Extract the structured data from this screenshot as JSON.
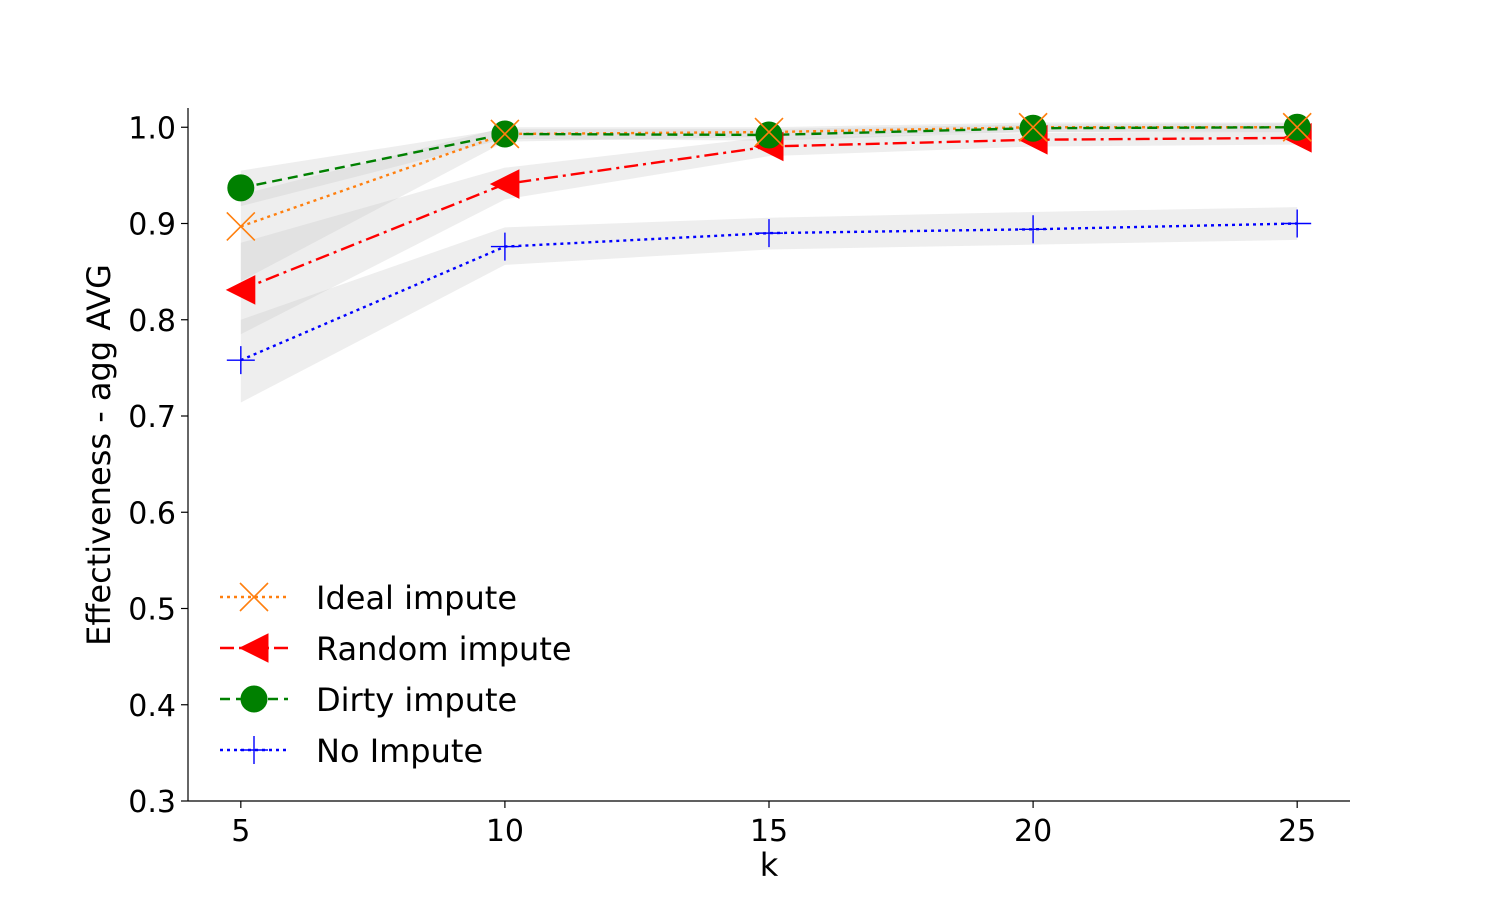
{
  "chart_data": {
    "type": "line",
    "title": "",
    "xlabel": "k",
    "ylabel": "Effectiveness - agg AVG",
    "x": [
      5,
      10,
      15,
      20,
      25
    ],
    "xlim": [
      4,
      26
    ],
    "ylim": [
      0.3,
      1.02
    ],
    "x_ticks": [
      "5",
      "10",
      "15",
      "20",
      "25"
    ],
    "y_ticks": [
      "0.3",
      "0.4",
      "0.5",
      "0.6",
      "0.7",
      "0.8",
      "0.9",
      "1.0"
    ],
    "grid": false,
    "legend_position": "lower-left",
    "series": [
      {
        "name": "Ideal impute",
        "values": [
          0.897,
          0.993,
          0.995,
          1.0,
          1.0
        ],
        "band_low": [
          0.84,
          0.985,
          0.99,
          0.995,
          0.995
        ],
        "band_high": [
          0.93,
          1.0,
          1.0,
          1.005,
          1.005
        ],
        "color": "#ff7f0e",
        "dash": "dotted",
        "marker": "x"
      },
      {
        "name": "Random impute",
        "values": [
          0.831,
          0.941,
          0.98,
          0.987,
          0.989
        ],
        "band_low": [
          0.785,
          0.925,
          0.97,
          0.98,
          0.982
        ],
        "band_high": [
          0.88,
          0.958,
          0.99,
          0.994,
          0.996
        ],
        "color": "#ff0000",
        "dash": "dashdot",
        "marker": "triangle-left"
      },
      {
        "name": "Dirty impute",
        "values": [
          0.937,
          0.993,
          0.992,
          0.999,
          1.0
        ],
        "band_low": [
          0.918,
          0.988,
          0.986,
          0.995,
          0.996
        ],
        "band_high": [
          0.955,
          0.998,
          0.998,
          1.003,
          1.004
        ],
        "color": "#008000",
        "dash": "dashed",
        "marker": "circle"
      },
      {
        "name": "No Impute",
        "values": [
          0.758,
          0.876,
          0.89,
          0.894,
          0.9
        ],
        "band_low": [
          0.714,
          0.857,
          0.873,
          0.878,
          0.883
        ],
        "band_high": [
          0.8,
          0.896,
          0.906,
          0.912,
          0.917
        ],
        "color": "#0000ff",
        "dash": "dotted",
        "marker": "plus"
      }
    ]
  }
}
